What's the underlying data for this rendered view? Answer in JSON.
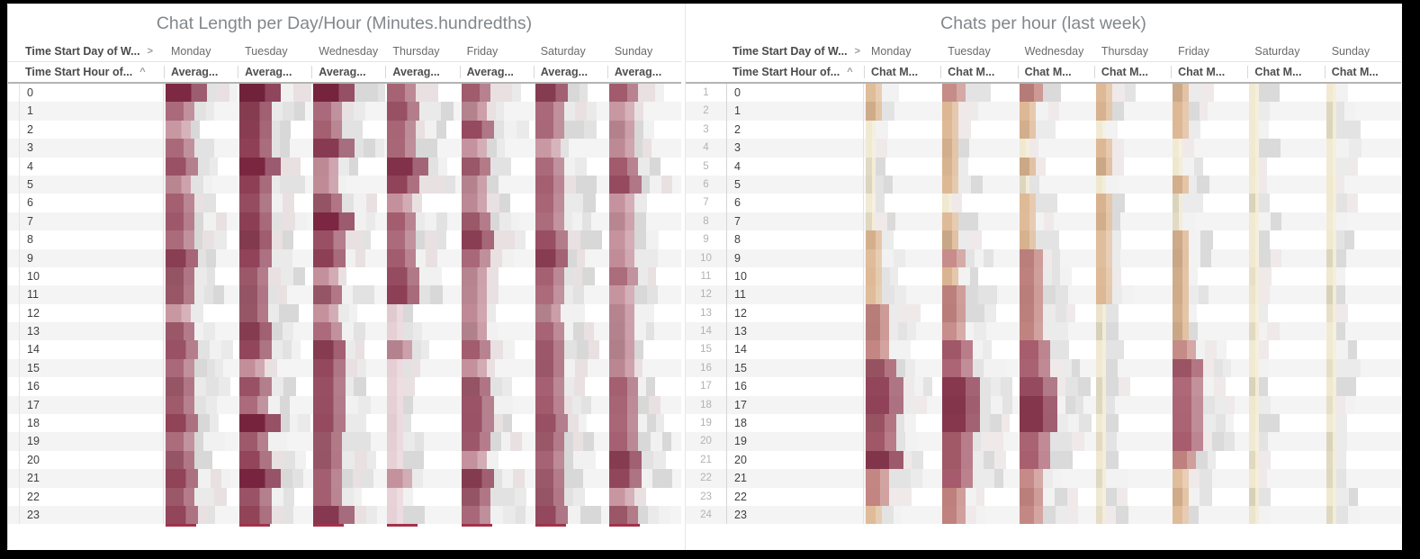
{
  "frame": {
    "border_color": "#000000",
    "canvas_background": "#ffffff"
  },
  "icons": {
    "day_sort_arrow": ">",
    "hour_sort_caret": "^"
  },
  "left_table": {
    "title": "Chat Length per Day/Hour (Minutes.hundredths)",
    "day_dimension_label": "Time Start Day of W...",
    "hour_dimension_label": "Time Start Hour of...",
    "measure_label": "Averag...",
    "values_redacted": true,
    "viz": {
      "colors": [
        "#f7f3f4",
        "#e5cfd5",
        "#c28d99",
        "#a25c6e",
        "#8f4056",
        "#7b2540"
      ],
      "widths": [
        10,
        18,
        28,
        32,
        36,
        46
      ],
      "grays": [
        "#d8d8d8",
        "#e2e2e2",
        "#eaeaea",
        "#f1f1f1",
        "#e9e0e2"
      ],
      "bottom_mark_color": "#a2324a",
      "bottom_mark_width": 34
    }
  },
  "right_table": {
    "title": "Chats per hour (last week)",
    "day_dimension_label": "Time Start Day of W...",
    "hour_dimension_label": "Time Start Hour of...",
    "measure_label": "Chat M...",
    "has_row_numbers": true,
    "row_numbers_first": 1,
    "row_numbers_last": 24,
    "values_redacted": true,
    "viz": {
      "colors": [
        "#f8f6ee",
        "#f0e8cf",
        "#ddb793",
        "#c28480",
        "#a55a6a",
        "#8b3950"
      ],
      "widths": [
        8,
        11,
        18,
        26,
        34,
        42
      ],
      "grays": [
        "#dadada",
        "#e3e3e3",
        "#ebebeb",
        "#f2f2f2",
        "#efe9ea"
      ],
      "bottom_mark_color": "",
      "bottom_mark_width": 0
    }
  },
  "chart_data": [
    {
      "type": "heatmap",
      "title": "Chat Length per Day/Hour (Minutes.hundredths)",
      "x_dimension": "Time Start Day of Week",
      "y_dimension": "Time Start Hour",
      "measure": "Average chat length (minutes.hundredths), numeric cell values blurred",
      "rows": [
        0,
        1,
        2,
        3,
        4,
        5,
        6,
        7,
        8,
        9,
        10,
        11,
        12,
        13,
        14,
        15,
        16,
        17,
        18,
        19,
        20,
        21,
        22,
        23
      ],
      "intensity_scale": "0=none to 5=darkest red",
      "series": [
        {
          "name": "Monday",
          "levels": [
            5,
            3,
            2,
            3,
            4,
            2,
            3,
            3,
            3,
            4,
            3,
            3,
            2,
            3,
            4,
            3,
            3,
            3,
            4,
            3,
            3,
            4,
            3,
            4
          ]
        },
        {
          "name": "Tuesday",
          "levels": [
            5,
            4,
            4,
            4,
            5,
            4,
            4,
            4,
            4,
            4,
            3,
            3,
            3,
            4,
            4,
            2,
            4,
            3,
            5,
            3,
            4,
            5,
            4,
            4
          ]
        },
        {
          "name": "Wednesday",
          "levels": [
            5,
            3,
            3,
            5,
            2,
            2,
            3,
            5,
            4,
            4,
            2,
            3,
            2,
            3,
            4,
            4,
            4,
            4,
            4,
            3,
            3,
            3,
            3,
            5
          ]
        },
        {
          "name": "Thursday",
          "levels": [
            3,
            4,
            3,
            3,
            5,
            4,
            2,
            3,
            3,
            3,
            4,
            4,
            1,
            1,
            2,
            1,
            1,
            1,
            1,
            1,
            1,
            2,
            1,
            1
          ]
        },
        {
          "name": "Friday",
          "levels": [
            3,
            2,
            4,
            2,
            3,
            2,
            2,
            3,
            4,
            3,
            2,
            2,
            2,
            2,
            3,
            2,
            3,
            4,
            4,
            3,
            2,
            4,
            3,
            3
          ]
        },
        {
          "name": "Saturday",
          "levels": [
            4,
            3,
            3,
            2,
            3,
            3,
            3,
            3,
            4,
            4,
            3,
            3,
            2,
            3,
            3,
            3,
            3,
            3,
            4,
            3,
            3,
            3,
            3,
            4
          ]
        },
        {
          "name": "Sunday",
          "levels": [
            3,
            2,
            2,
            2,
            3,
            4,
            2,
            2,
            2,
            2,
            3,
            2,
            2,
            2,
            2,
            2,
            3,
            3,
            3,
            3,
            4,
            4,
            2,
            3
          ]
        }
      ]
    },
    {
      "type": "heatmap",
      "title": "Chats per hour (last week)",
      "x_dimension": "Time Start Day of Week",
      "y_dimension": "Time Start Hour",
      "measure": "Chat count, numeric cell values blurred",
      "rows": [
        0,
        1,
        2,
        3,
        4,
        5,
        6,
        7,
        8,
        9,
        10,
        11,
        12,
        13,
        14,
        15,
        16,
        17,
        18,
        19,
        20,
        21,
        22,
        23
      ],
      "intensity_scale": "0=none, 1=pale cream, 2=tan, 3=rose, 4=red, 5=dark maroon",
      "series": [
        {
          "name": "Monday",
          "levels": [
            2,
            2,
            1,
            1,
            1,
            1,
            1,
            1,
            2,
            2,
            2,
            2,
            3,
            3,
            3,
            4,
            5,
            5,
            4,
            4,
            5,
            3,
            3,
            2
          ]
        },
        {
          "name": "Tuesday",
          "levels": [
            3,
            2,
            2,
            2,
            2,
            2,
            1,
            2,
            2,
            3,
            2,
            3,
            3,
            3,
            4,
            4,
            5,
            5,
            5,
            4,
            4,
            4,
            3,
            3
          ]
        },
        {
          "name": "Wednesday",
          "levels": [
            3,
            2,
            2,
            1,
            2,
            1,
            2,
            2,
            2,
            3,
            3,
            3,
            3,
            3,
            4,
            4,
            5,
            5,
            5,
            4,
            4,
            3,
            3,
            3
          ]
        },
        {
          "name": "Thursday",
          "levels": [
            2,
            2,
            1,
            2,
            2,
            1,
            2,
            2,
            2,
            2,
            2,
            2,
            1,
            1,
            1,
            1,
            1,
            1,
            1,
            1,
            1,
            1,
            1,
            1
          ]
        },
        {
          "name": "Friday",
          "levels": [
            2,
            2,
            2,
            1,
            1,
            2,
            1,
            1,
            2,
            2,
            2,
            2,
            2,
            2,
            3,
            4,
            4,
            4,
            4,
            4,
            3,
            2,
            2,
            2
          ]
        },
        {
          "name": "Saturday",
          "levels": [
            1,
            1,
            1,
            1,
            1,
            1,
            1,
            1,
            1,
            1,
            1,
            1,
            1,
            1,
            1,
            1,
            1,
            1,
            1,
            1,
            1,
            1,
            1,
            1
          ]
        },
        {
          "name": "Sunday",
          "levels": [
            1,
            1,
            1,
            1,
            1,
            1,
            1,
            1,
            1,
            1,
            1,
            1,
            1,
            1,
            1,
            1,
            1,
            1,
            1,
            1,
            1,
            1,
            1,
            1
          ]
        }
      ]
    }
  ]
}
